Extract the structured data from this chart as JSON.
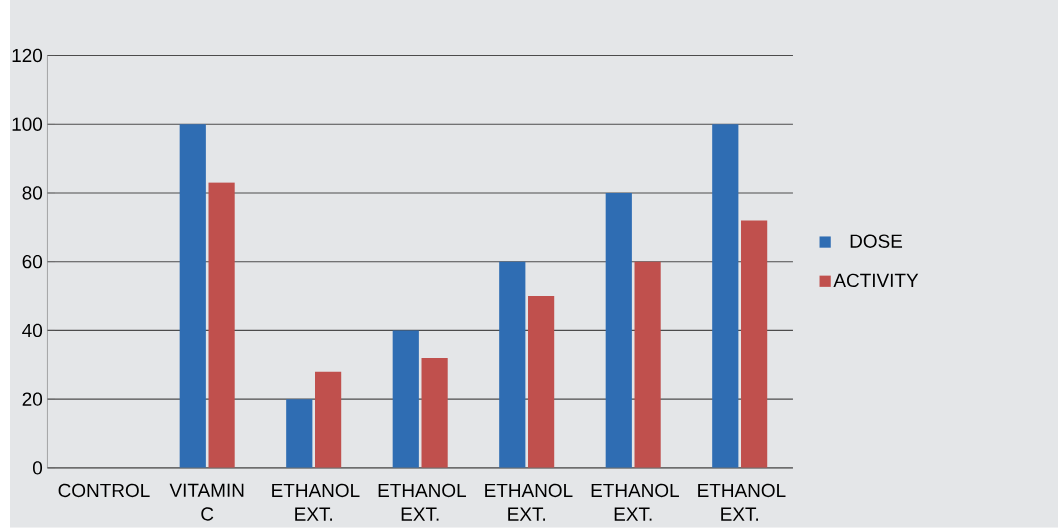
{
  "chart_data": {
    "type": "bar",
    "categories": [
      "CONTROL",
      "VITAMIN C",
      "ETHANOL EXT.",
      "ETHANOL EXT.",
      "ETHANOL EXT.",
      "ETHANOL EXT.",
      "ETHANOL EXT."
    ],
    "series": [
      {
        "name": "DOSE",
        "color": "#2f6db3",
        "values": [
          0,
          100,
          20,
          40,
          60,
          80,
          100
        ]
      },
      {
        "name": "ACTIVITY",
        "color": "#c0504d",
        "values": [
          0,
          83,
          28,
          32,
          50,
          60,
          72
        ]
      }
    ],
    "ylim": [
      0,
      120
    ],
    "yticks": [
      0,
      20,
      40,
      60,
      80,
      100,
      120
    ],
    "grid": "y",
    "legend": "right"
  }
}
